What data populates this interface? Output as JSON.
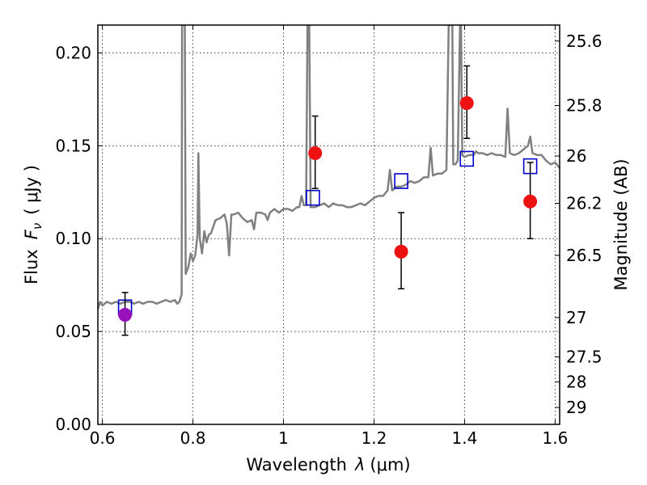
{
  "chart_data": {
    "type": "scatter",
    "xlabel": "Wavelength",
    "xlabel_symbol": "λ",
    "xlabel_unit": "(μm)",
    "ylabel": "Flux",
    "ylabel_symbol": "F",
    "ylabel_sub": "ν",
    "ylabel_unit": "( μJy )",
    "y2label": "Magnitude (AB)",
    "xlim": [
      0.59,
      1.61
    ],
    "ylim": [
      0.0,
      0.215
    ],
    "grid": true,
    "x_ticks": [
      {
        "value": 0.6,
        "label": "0.6"
      },
      {
        "value": 0.8,
        "label": "0.8"
      },
      {
        "value": 1.0,
        "label": "1"
      },
      {
        "value": 1.2,
        "label": "1.2"
      },
      {
        "value": 1.4,
        "label": "1.4"
      },
      {
        "value": 1.6,
        "label": "1.6"
      }
    ],
    "y_ticks": [
      {
        "value": 0.0,
        "label": "0.00"
      },
      {
        "value": 0.05,
        "label": "0.05"
      },
      {
        "value": 0.1,
        "label": "0.10"
      },
      {
        "value": 0.15,
        "label": "0.15"
      },
      {
        "value": 0.2,
        "label": "0.20"
      }
    ],
    "y2_ticks": [
      {
        "flux": 0.2064,
        "label": "25.6"
      },
      {
        "flux": 0.1717,
        "label": "25.8"
      },
      {
        "flux": 0.1445,
        "label": "26"
      },
      {
        "flux": 0.119,
        "label": "26.2"
      },
      {
        "flux": 0.091,
        "label": "26.5"
      },
      {
        "flux": 0.0575,
        "label": "27"
      },
      {
        "flux": 0.0363,
        "label": "27.5"
      },
      {
        "flux": 0.0229,
        "label": "28"
      },
      {
        "flux": 0.0091,
        "label": "29"
      }
    ],
    "observed": [
      {
        "x": 1.07,
        "y": 0.146,
        "yerr_low": 0.127,
        "yerr_high": 0.166,
        "color": "#ee1111"
      },
      {
        "x": 1.26,
        "y": 0.093,
        "yerr_low": 0.073,
        "yerr_high": 0.114,
        "color": "#ee1111"
      },
      {
        "x": 1.405,
        "y": 0.173,
        "yerr_low": 0.154,
        "yerr_high": 0.193,
        "color": "#ee1111"
      },
      {
        "x": 1.545,
        "y": 0.12,
        "yerr_low": 0.1,
        "yerr_high": 0.141,
        "color": "#ee1111"
      },
      {
        "x": 0.65,
        "y": 0.059,
        "yerr_low": 0.048,
        "yerr_high": 0.071,
        "color": "#9911bb"
      }
    ],
    "model_photometry": [
      {
        "x": 0.65,
        "y": 0.063
      },
      {
        "x": 1.065,
        "y": 0.122
      },
      {
        "x": 1.26,
        "y": 0.131
      },
      {
        "x": 1.405,
        "y": 0.143
      },
      {
        "x": 1.545,
        "y": 0.139
      }
    ],
    "sed_model": {
      "color": "#808080",
      "points": [
        [
          0.59,
          0.062
        ],
        [
          0.595,
          0.066
        ],
        [
          0.6,
          0.064
        ],
        [
          0.61,
          0.066
        ],
        [
          0.62,
          0.065
        ],
        [
          0.63,
          0.066
        ],
        [
          0.64,
          0.065
        ],
        [
          0.65,
          0.066
        ],
        [
          0.66,
          0.066
        ],
        [
          0.67,
          0.065
        ],
        [
          0.68,
          0.066
        ],
        [
          0.69,
          0.065
        ],
        [
          0.7,
          0.066
        ],
        [
          0.71,
          0.066
        ],
        [
          0.72,
          0.065
        ],
        [
          0.73,
          0.066
        ],
        [
          0.74,
          0.067
        ],
        [
          0.75,
          0.066
        ],
        [
          0.76,
          0.067
        ],
        [
          0.765,
          0.065
        ],
        [
          0.77,
          0.066
        ],
        [
          0.775,
          0.07
        ],
        [
          0.776,
          0.215
        ],
        [
          0.778,
          0.215
        ],
        [
          0.78,
          0.215
        ],
        [
          0.782,
          0.215
        ],
        [
          0.784,
          0.081
        ],
        [
          0.79,
          0.085
        ],
        [
          0.795,
          0.092
        ],
        [
          0.8,
          0.088
        ],
        [
          0.805,
          0.091
        ],
        [
          0.81,
          0.102
        ],
        [
          0.812,
          0.146
        ],
        [
          0.815,
          0.1
        ],
        [
          0.82,
          0.092
        ],
        [
          0.825,
          0.104
        ],
        [
          0.83,
          0.098
        ],
        [
          0.835,
          0.102
        ],
        [
          0.84,
          0.103
        ],
        [
          0.85,
          0.11
        ],
        [
          0.86,
          0.111
        ],
        [
          0.87,
          0.113
        ],
        [
          0.875,
          0.108
        ],
        [
          0.88,
          0.091
        ],
        [
          0.885,
          0.113
        ],
        [
          0.89,
          0.113
        ],
        [
          0.9,
          0.114
        ],
        [
          0.91,
          0.111
        ],
        [
          0.92,
          0.109
        ],
        [
          0.93,
          0.11
        ],
        [
          0.935,
          0.105
        ],
        [
          0.94,
          0.114
        ],
        [
          0.95,
          0.114
        ],
        [
          0.96,
          0.113
        ],
        [
          0.965,
          0.11
        ],
        [
          0.97,
          0.114
        ],
        [
          0.98,
          0.116
        ],
        [
          0.99,
          0.114
        ],
        [
          1.0,
          0.116
        ],
        [
          1.01,
          0.116
        ],
        [
          1.02,
          0.115
        ],
        [
          1.03,
          0.117
        ],
        [
          1.035,
          0.117
        ],
        [
          1.04,
          0.123
        ],
        [
          1.045,
          0.118
        ],
        [
          1.05,
          0.118
        ],
        [
          1.053,
          0.215
        ],
        [
          1.057,
          0.215
        ],
        [
          1.06,
          0.117
        ],
        [
          1.07,
          0.117
        ],
        [
          1.08,
          0.118
        ],
        [
          1.09,
          0.119
        ],
        [
          1.1,
          0.117
        ],
        [
          1.11,
          0.119
        ],
        [
          1.12,
          0.118
        ],
        [
          1.13,
          0.118
        ],
        [
          1.14,
          0.117
        ],
        [
          1.15,
          0.117
        ],
        [
          1.16,
          0.118
        ],
        [
          1.17,
          0.119
        ],
        [
          1.18,
          0.118
        ],
        [
          1.19,
          0.12
        ],
        [
          1.2,
          0.122
        ],
        [
          1.21,
          0.123
        ],
        [
          1.22,
          0.123
        ],
        [
          1.23,
          0.126
        ],
        [
          1.235,
          0.137
        ],
        [
          1.24,
          0.126
        ],
        [
          1.25,
          0.128
        ],
        [
          1.26,
          0.128
        ],
        [
          1.27,
          0.129
        ],
        [
          1.28,
          0.131
        ],
        [
          1.29,
          0.13
        ],
        [
          1.3,
          0.131
        ],
        [
          1.31,
          0.133
        ],
        [
          1.32,
          0.133
        ],
        [
          1.325,
          0.149
        ],
        [
          1.33,
          0.134
        ],
        [
          1.34,
          0.135
        ],
        [
          1.35,
          0.135
        ],
        [
          1.36,
          0.137
        ],
        [
          1.365,
          0.215
        ],
        [
          1.37,
          0.215
        ],
        [
          1.373,
          0.215
        ],
        [
          1.375,
          0.14
        ],
        [
          1.38,
          0.14
        ],
        [
          1.385,
          0.142
        ],
        [
          1.39,
          0.215
        ],
        [
          1.392,
          0.215
        ],
        [
          1.395,
          0.145
        ],
        [
          1.4,
          0.144
        ],
        [
          1.41,
          0.145
        ],
        [
          1.42,
          0.145
        ],
        [
          1.425,
          0.147
        ],
        [
          1.43,
          0.146
        ],
        [
          1.44,
          0.146
        ],
        [
          1.45,
          0.145
        ],
        [
          1.46,
          0.146
        ],
        [
          1.47,
          0.145
        ],
        [
          1.48,
          0.145
        ],
        [
          1.49,
          0.144
        ],
        [
          1.495,
          0.17
        ],
        [
          1.5,
          0.146
        ],
        [
          1.51,
          0.145
        ],
        [
          1.52,
          0.146
        ],
        [
          1.53,
          0.148
        ],
        [
          1.54,
          0.15
        ],
        [
          1.545,
          0.155
        ],
        [
          1.55,
          0.146
        ],
        [
          1.56,
          0.145
        ],
        [
          1.57,
          0.145
        ],
        [
          1.58,
          0.142
        ],
        [
          1.59,
          0.14
        ],
        [
          1.6,
          0.141
        ],
        [
          1.61,
          0.138
        ]
      ]
    }
  }
}
